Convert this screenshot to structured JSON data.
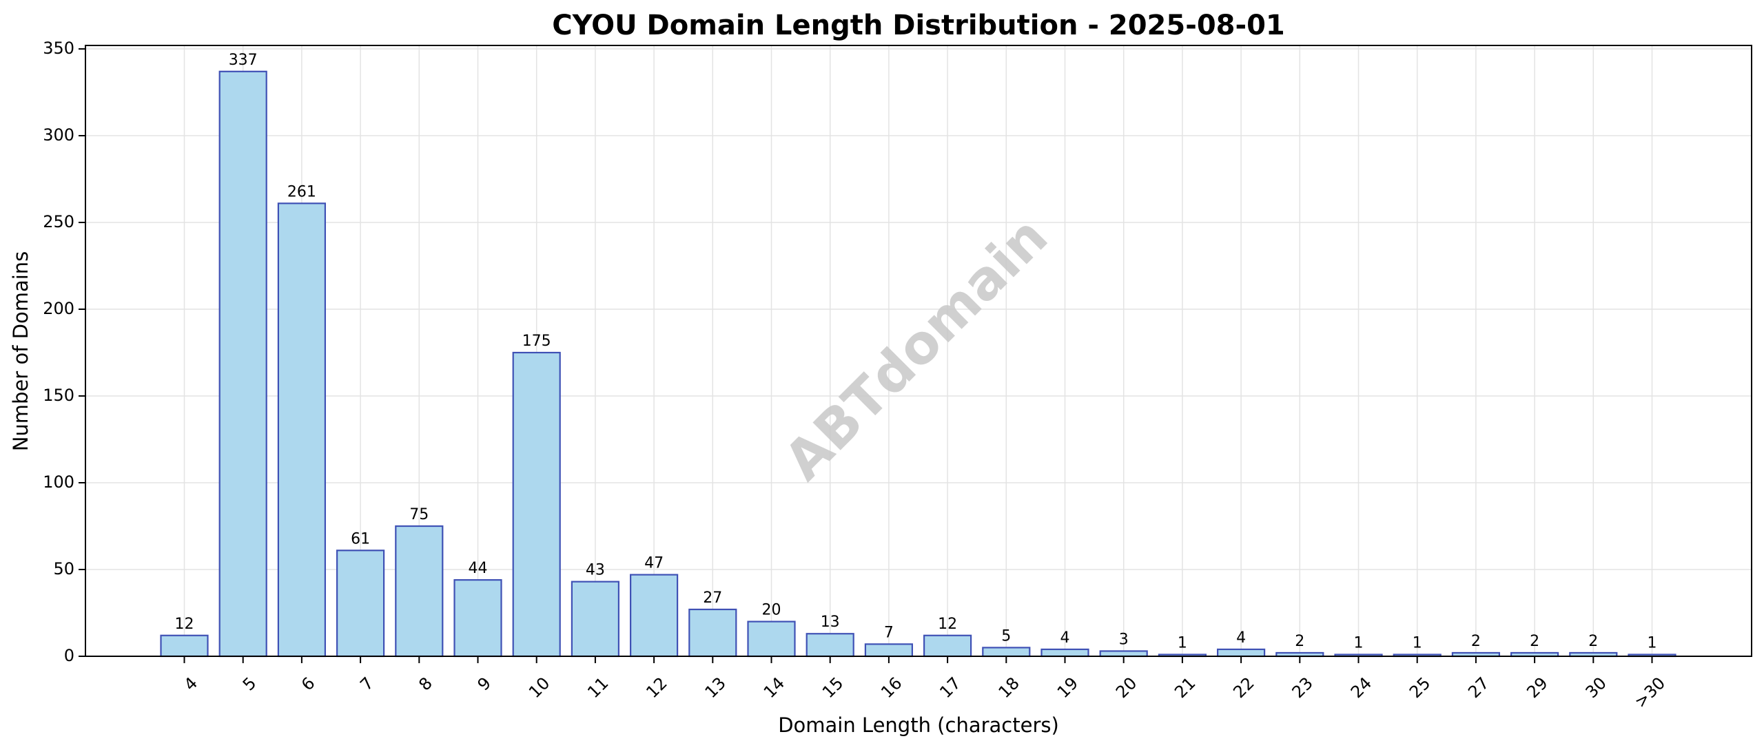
{
  "chart_data": {
    "type": "bar",
    "title": "CYOU Domain Length Distribution - 2025-08-01",
    "xlabel": "Domain Length (characters)",
    "ylabel": "Number of Domains",
    "categories": [
      "4",
      "5",
      "6",
      "7",
      "8",
      "9",
      "10",
      "11",
      "12",
      "13",
      "14",
      "15",
      "16",
      "17",
      "18",
      "19",
      "20",
      "21",
      "22",
      "23",
      "24",
      "25",
      "27",
      "29",
      "30",
      ">30"
    ],
    "values": [
      12,
      337,
      261,
      61,
      75,
      44,
      175,
      43,
      47,
      27,
      20,
      13,
      7,
      12,
      5,
      4,
      3,
      1,
      4,
      2,
      1,
      1,
      2,
      2,
      2,
      1
    ],
    "ylim": [
      0,
      352
    ],
    "yticks": [
      0,
      50,
      100,
      150,
      200,
      250,
      300,
      350
    ],
    "grid": true,
    "bar_fill": "#add8ee",
    "bar_edge": "#3f51b5",
    "watermark": "ABTdomain",
    "colors": {
      "grid": "#e3e3e3",
      "axis": "#000000"
    }
  }
}
